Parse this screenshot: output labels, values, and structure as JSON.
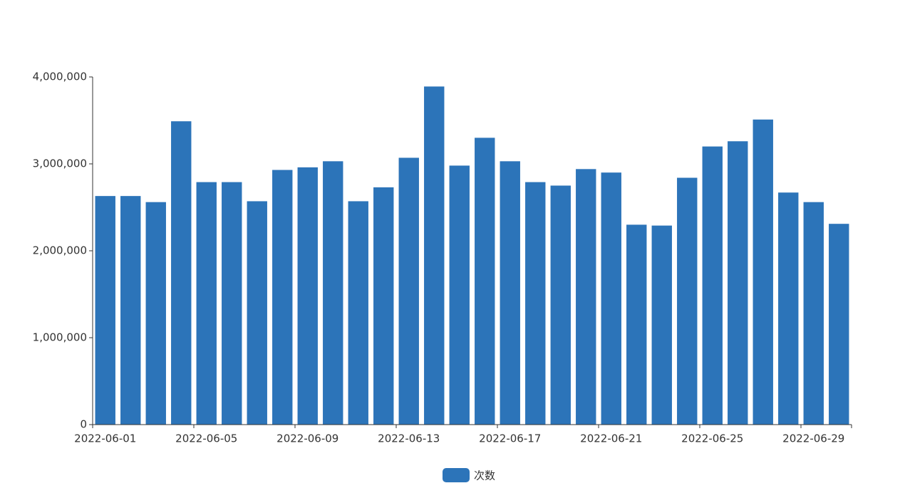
{
  "chart_data": {
    "type": "bar",
    "categories": [
      "2022-06-01",
      null,
      null,
      null,
      "2022-06-05",
      null,
      null,
      null,
      "2022-06-09",
      null,
      null,
      null,
      "2022-06-13",
      null,
      null,
      null,
      "2022-06-17",
      null,
      null,
      null,
      "2022-06-21",
      null,
      null,
      null,
      "2022-06-25",
      null,
      null,
      null,
      "2022-06-29",
      null
    ],
    "series": [
      {
        "name": "次数",
        "color": "#2c74b9",
        "values": [
          2630000,
          2630000,
          2560000,
          3490000,
          2790000,
          2790000,
          2570000,
          2930000,
          2960000,
          3030000,
          2570000,
          2730000,
          3070000,
          3890000,
          2980000,
          3300000,
          3030000,
          2790000,
          2750000,
          2940000,
          2900000,
          2300000,
          2290000,
          2840000,
          3200000,
          3260000,
          3510000,
          2670000,
          2560000,
          2310000
        ]
      }
    ],
    "ylim": [
      0,
      4000000
    ],
    "yticks": [
      0,
      {
        "value": 1000000,
        "label": "1,000,000"
      },
      {
        "value": 2000000,
        "label": "2,000,000"
      },
      {
        "value": 3000000,
        "label": "3,000,000"
      },
      {
        "value": 4000000,
        "label": "4,000,000"
      }
    ],
    "legend": "bottom"
  }
}
